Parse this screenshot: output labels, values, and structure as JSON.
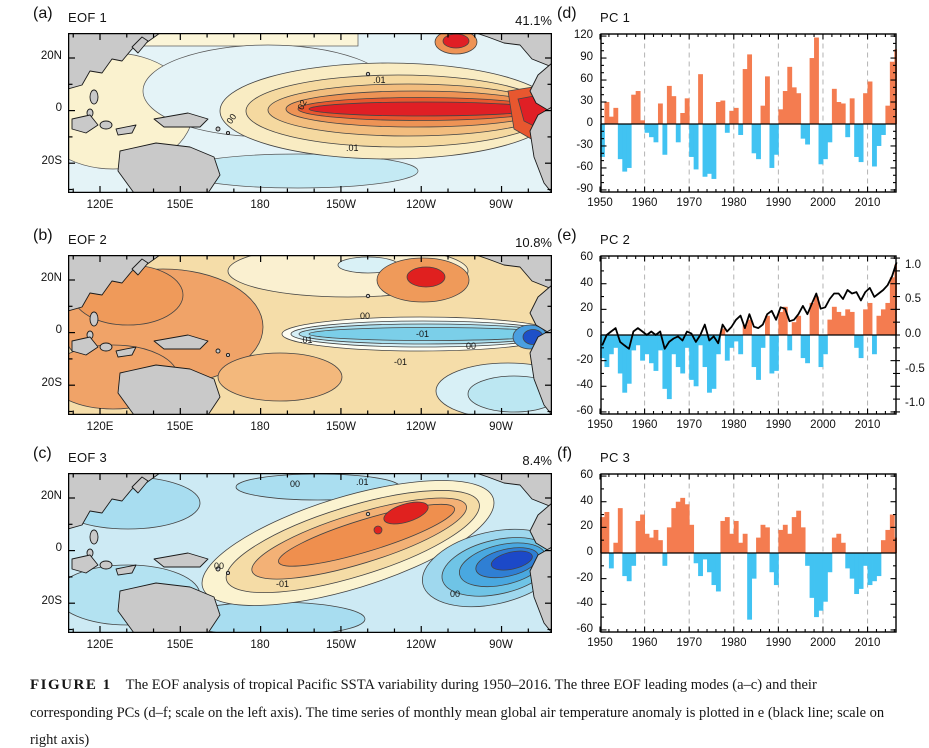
{
  "figure": {
    "caption_label": "FIGURE 1",
    "caption_text": "The EOF analysis of tropical Pacific SSTA variability during 1950–2016. The three EOF leading modes (a–c) and their corresponding PCs (d–f; scale on the left axis). The time series of monthly mean global air temperature anomaly is plotted in e (black line; scale on right axis)"
  },
  "colors": {
    "positive_bar": "#f47c50",
    "negative_bar": "#41c3f2",
    "temp_line": "#000000",
    "grid_dash": "#b3b3b3",
    "land": "#c9c9c9",
    "frame": "#000000"
  },
  "maps": [
    {
      "panel": "(a)",
      "title": "EOF 1",
      "variance": "41.1%",
      "lat_ticks": [
        "20N",
        "0",
        "20S"
      ],
      "lon_ticks": [
        "120E",
        "150E",
        "180",
        "150W",
        "120W",
        "90W"
      ],
      "contour_labels": [
        ".01",
        "02",
        "00",
        ".01"
      ]
    },
    {
      "panel": "(b)",
      "title": "EOF 2",
      "variance": "10.8%",
      "lat_ticks": [
        "20N",
        "0",
        "20S"
      ],
      "lon_ticks": [
        "120E",
        "150E",
        "180",
        "150W",
        "120W",
        "90W"
      ],
      "contour_labels": [
        "00",
        "-01",
        "00",
        ".01",
        "-01"
      ]
    },
    {
      "panel": "(c)",
      "title": "EOF 3",
      "variance": "8.4%",
      "lat_ticks": [
        "20N",
        "0",
        "20S"
      ],
      "lon_ticks": [
        "120E",
        "150E",
        "180",
        "150W",
        "120W",
        "90W"
      ],
      "contour_labels": [
        "00",
        ".01",
        "00",
        "-01",
        "00"
      ]
    }
  ],
  "chart_data": [
    {
      "id": "pc1",
      "type": "bar",
      "panel": "(d)",
      "title": "PC 1",
      "xlabel": "",
      "ylabel": "",
      "x_start": 1950,
      "x_end": 2016,
      "x_step": 1,
      "ylim": [
        -90,
        120
      ],
      "ytick_labels": [
        "120",
        "90",
        "60",
        "30",
        "0",
        "-30",
        "-60",
        "-90"
      ],
      "ytick_values": [
        120,
        90,
        60,
        30,
        0,
        -30,
        -60,
        -90
      ],
      "xtick_labels": [
        "1950",
        "1960",
        "1970",
        "1980",
        "1990",
        "2000",
        "2010"
      ],
      "xtick_values": [
        1950,
        1960,
        1970,
        1980,
        1990,
        2000,
        2010
      ],
      "grid_years": [
        1960,
        1970,
        1980,
        1990,
        2000,
        2010
      ],
      "values": [
        -45,
        30,
        10,
        22,
        -48,
        -65,
        -60,
        40,
        45,
        5,
        -12,
        -18,
        -25,
        28,
        -42,
        52,
        38,
        -25,
        15,
        35,
        -45,
        -62,
        68,
        -72,
        -68,
        -75,
        30,
        32,
        -12,
        18,
        22,
        -15,
        75,
        95,
        -40,
        -48,
        25,
        65,
        -60,
        -42,
        20,
        45,
        78,
        50,
        42,
        -20,
        -28,
        90,
        118,
        -55,
        -48,
        -25,
        48,
        30,
        28,
        -18,
        35,
        -45,
        -52,
        42,
        58,
        -58,
        -30,
        -15,
        25,
        85,
        102
      ]
    },
    {
      "id": "pc2",
      "type": "bar",
      "panel": "(e)",
      "title": "PC 2",
      "xlabel": "",
      "ylabel": "",
      "x_start": 1950,
      "x_end": 2016,
      "x_step": 1,
      "ylim": [
        -60,
        60
      ],
      "ytick_labels": [
        "60",
        "40",
        "20",
        "0",
        "-20",
        "-40",
        "-60"
      ],
      "ytick_values": [
        60,
        40,
        20,
        0,
        -20,
        -40,
        -60
      ],
      "xtick_labels": [
        "1950",
        "1960",
        "1970",
        "1980",
        "1990",
        "2000",
        "2010"
      ],
      "xtick_values": [
        1950,
        1960,
        1970,
        1980,
        1990,
        2000,
        2010
      ],
      "grid_years": [
        1960,
        1970,
        1980,
        1990,
        2000,
        2010
      ],
      "values": [
        -18,
        -25,
        -15,
        -10,
        -30,
        -45,
        -38,
        -12,
        -8,
        -20,
        -15,
        -22,
        -28,
        -12,
        -42,
        -50,
        -15,
        -25,
        -30,
        -10,
        -35,
        -40,
        -8,
        -25,
        -45,
        -42,
        -15,
        5,
        -20,
        -10,
        -5,
        -15,
        8,
        12,
        -25,
        -35,
        -10,
        15,
        -30,
        -28,
        18,
        22,
        -12,
        10,
        15,
        -18,
        -22,
        25,
        30,
        -25,
        -15,
        12,
        22,
        18,
        15,
        20,
        18,
        -10,
        -18,
        20,
        25,
        -15,
        15,
        20,
        25,
        45,
        55
      ],
      "right_axis": {
        "tick_labels": [
          "1.0",
          "0.5",
          "0.0",
          "-0.5",
          "-1.0"
        ],
        "tick_values": [
          1.0,
          0.5,
          0.0,
          -0.5,
          -1.0
        ],
        "scale_to_left": 54
      },
      "line_series": {
        "name": "monthly mean global air temperature anomaly",
        "values": [
          -0.15,
          0.0,
          0.05,
          0.1,
          -0.1,
          -0.15,
          -0.2,
          0.05,
          0.1,
          0.05,
          0.0,
          0.05,
          0.0,
          0.05,
          -0.2,
          -0.1,
          -0.05,
          -0.02,
          -0.08,
          0.05,
          0.02,
          -0.1,
          0.0,
          0.15,
          -0.08,
          -0.02,
          -0.12,
          0.15,
          0.05,
          0.12,
          0.22,
          0.28,
          0.1,
          0.3,
          0.12,
          0.1,
          0.15,
          0.3,
          0.35,
          0.22,
          0.4,
          0.38,
          0.2,
          0.22,
          0.3,
          0.42,
          0.3,
          0.45,
          0.6,
          0.38,
          0.4,
          0.52,
          0.6,
          0.6,
          0.52,
          0.65,
          0.6,
          0.62,
          0.5,
          0.62,
          0.68,
          0.55,
          0.6,
          0.65,
          0.72,
          0.85,
          1.05
        ]
      }
    },
    {
      "id": "pc3",
      "type": "bar",
      "panel": "(f)",
      "title": "PC 3",
      "xlabel": "",
      "ylabel": "",
      "x_start": 1950,
      "x_end": 2016,
      "x_step": 1,
      "ylim": [
        -60,
        60
      ],
      "ytick_labels": [
        "60",
        "40",
        "20",
        "0",
        "-20",
        "-40",
        "-60"
      ],
      "ytick_values": [
        60,
        40,
        20,
        0,
        -20,
        -40,
        -60
      ],
      "xtick_labels": [
        "1950",
        "1960",
        "1970",
        "1980",
        "1990",
        "2000",
        "2010"
      ],
      "xtick_values": [
        1950,
        1960,
        1970,
        1980,
        1990,
        2000,
        2010
      ],
      "grid_years": [
        1960,
        1970,
        1980,
        1990,
        2000,
        2010
      ],
      "values": [
        28,
        32,
        -12,
        8,
        35,
        -18,
        -22,
        -10,
        25,
        30,
        15,
        12,
        18,
        10,
        -10,
        20,
        35,
        40,
        43,
        38,
        22,
        -8,
        -18,
        -5,
        -15,
        -25,
        -30,
        25,
        28,
        15,
        25,
        8,
        15,
        -52,
        -20,
        12,
        22,
        20,
        -15,
        -25,
        18,
        22,
        15,
        28,
        33,
        20,
        -10,
        -35,
        -50,
        -45,
        -38,
        -15,
        12,
        15,
        8,
        -12,
        -20,
        -32,
        -28,
        -10,
        -25,
        -22,
        -18,
        10,
        18,
        30,
        12
      ]
    }
  ]
}
